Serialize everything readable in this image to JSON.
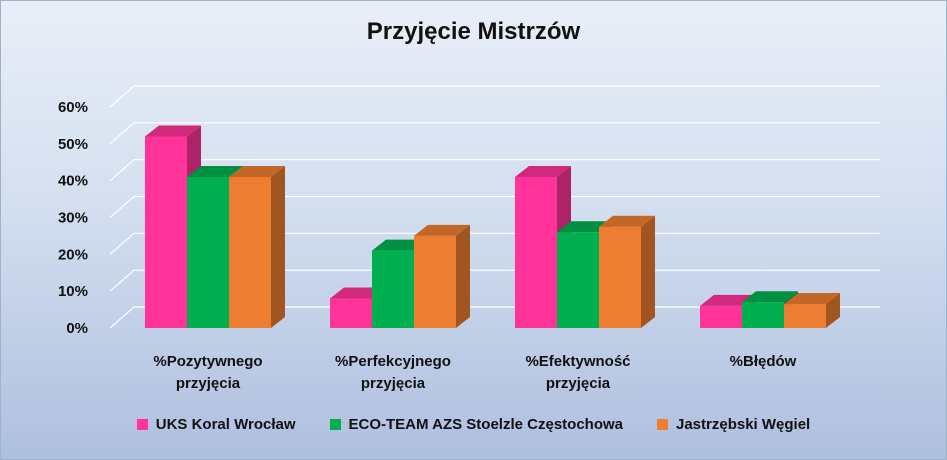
{
  "chart_data": {
    "type": "bar",
    "title": "Przyjęcie Mistrzów",
    "categories": [
      [
        "%Pozytywnego",
        "przyjęcia"
      ],
      [
        "%Perfekcyjnego",
        "przyjęcia"
      ],
      [
        "%Efektywność",
        "przyjęcia"
      ],
      [
        "%Błędów"
      ]
    ],
    "series": [
      {
        "name": "UKS Koral Wrocław",
        "color": "#ff3399",
        "values": [
          52,
          8,
          41,
          6
        ]
      },
      {
        "name": "ECO-TEAM AZS Stoelzle Częstochowa",
        "color": "#00b050",
        "values": [
          41,
          21,
          26,
          7
        ]
      },
      {
        "name": "Jastrzębski Węgiel",
        "color": "#ed7d31",
        "values": [
          41,
          25,
          27.5,
          6.5
        ]
      }
    ],
    "ylim": [
      0,
      60
    ],
    "yticks": [
      "0%",
      "10%",
      "20%",
      "30%",
      "40%",
      "50%",
      "60%"
    ],
    "grid": true,
    "legend_position": "bottom",
    "style": "3d-clustered-column"
  }
}
